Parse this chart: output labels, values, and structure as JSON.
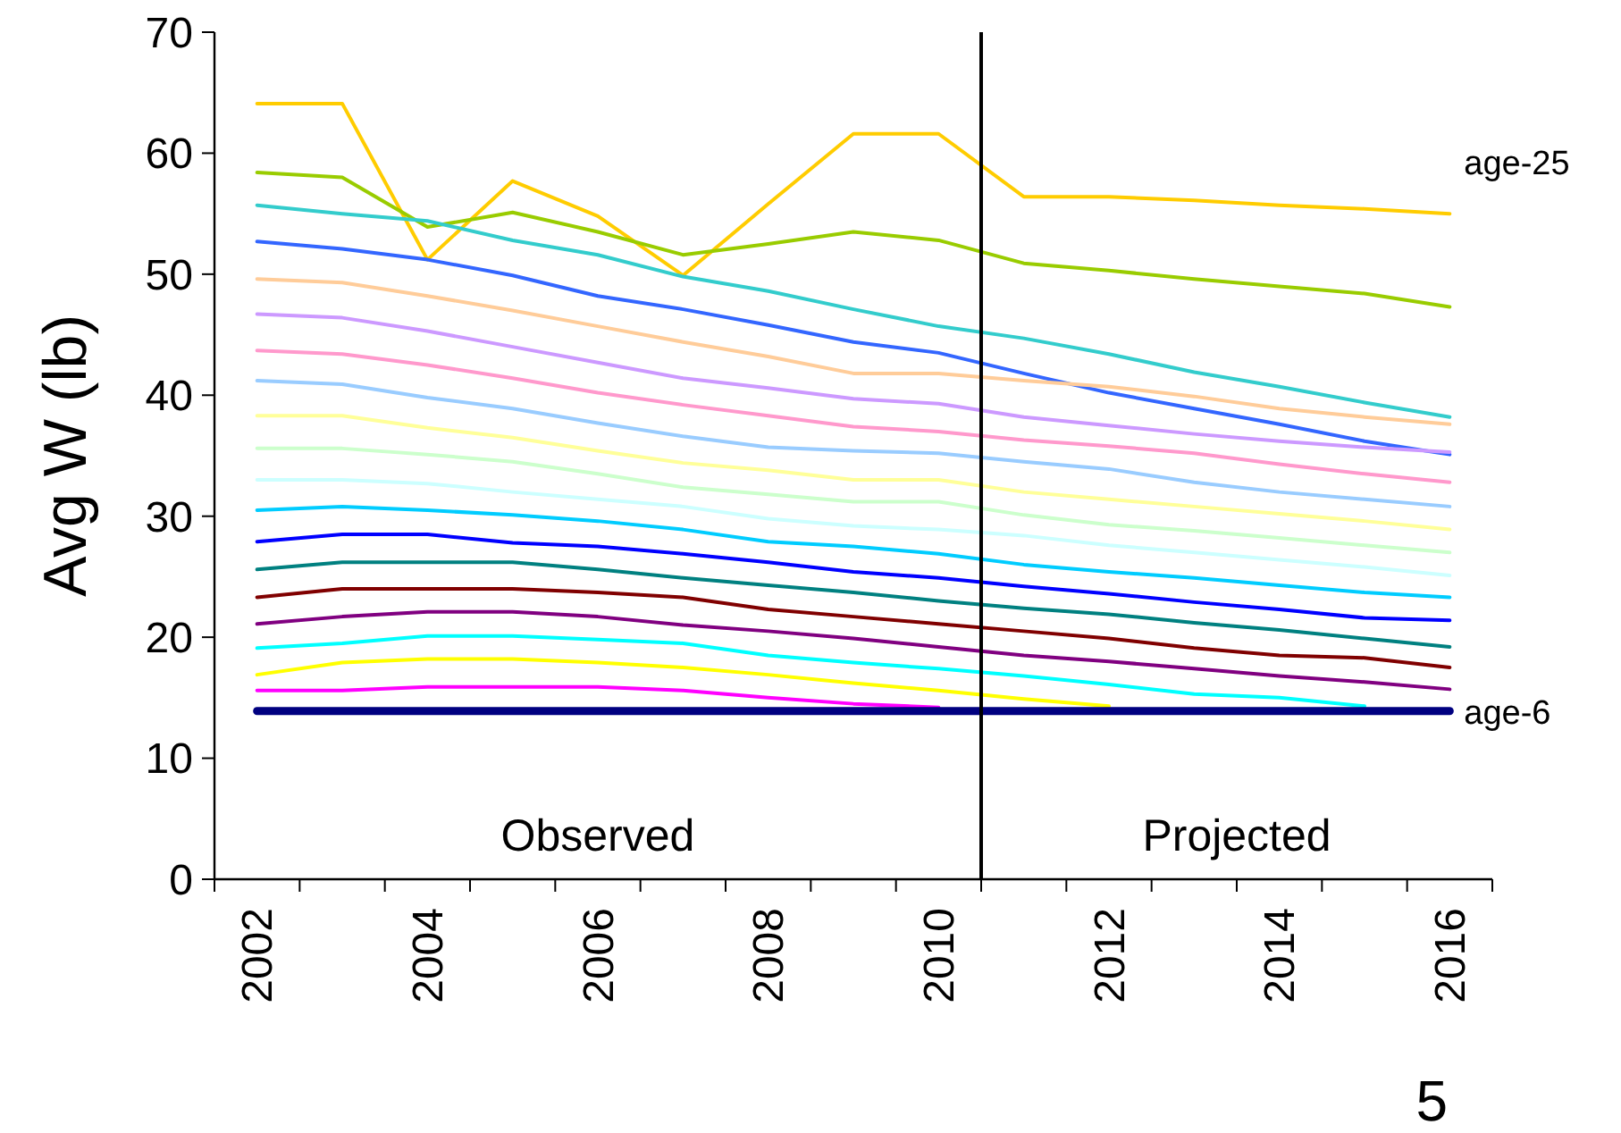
{
  "chart_data": {
    "type": "line",
    "ylabel": "Avg W (lb)",
    "x": [
      2002,
      2003,
      2004,
      2005,
      2006,
      2007,
      2008,
      2009,
      2010,
      2011,
      2012,
      2013,
      2014,
      2015,
      2016
    ],
    "xlim": [
      2001.5,
      2016.5
    ],
    "xticks": [
      {
        "value": 2001.5,
        "label": null
      },
      2002,
      {
        "value": 2002.5,
        "label": null
      },
      {
        "value": 2003.5,
        "label": null
      },
      2004,
      {
        "value": 2004.5,
        "label": null
      },
      {
        "value": 2005.5,
        "label": null
      },
      2006,
      {
        "value": 2006.5,
        "label": null
      },
      {
        "value": 2007.5,
        "label": null
      },
      2008,
      {
        "value": 2008.5,
        "label": null
      },
      {
        "value": 2009.5,
        "label": null
      },
      2010,
      {
        "value": 2010.5,
        "label": null
      },
      {
        "value": 2011.5,
        "label": null
      },
      2012,
      {
        "value": 2012.5,
        "label": null
      },
      {
        "value": 2013.5,
        "label": null
      },
      2014,
      {
        "value": 2014.5,
        "label": null
      },
      {
        "value": 2015.5,
        "label": null
      },
      2016,
      {
        "value": 2016.5,
        "label": null
      }
    ],
    "ylim": [
      0,
      70
    ],
    "yticks": [
      0,
      10,
      20,
      30,
      40,
      50,
      60,
      70
    ],
    "grid": false,
    "legend": false,
    "marker": "none",
    "line_style": "solid",
    "ref_lines": [
      {
        "axis": "x",
        "value": 2010.5,
        "color": "#000000"
      }
    ],
    "annotations": [
      "Observed",
      "Projected",
      "5"
    ],
    "series": [
      {
        "name": "age-25",
        "color": "#ffcc00",
        "values": [
          64.1,
          64.1,
          51.2,
          57.7,
          54.8,
          49.9,
          55.8,
          61.6,
          61.6,
          56.4,
          56.4,
          56.1,
          55.7,
          55.4,
          55.0
        ]
      },
      {
        "color": "#99cc00",
        "values": [
          58.4,
          58.0,
          53.9,
          55.1,
          53.5,
          51.6,
          52.5,
          53.5,
          52.8,
          50.9,
          50.3,
          49.6,
          49.0,
          48.4,
          47.3
        ]
      },
      {
        "color": "#33cccc",
        "values": [
          55.7,
          55.0,
          54.4,
          52.8,
          51.6,
          49.8,
          48.6,
          47.1,
          45.7,
          44.7,
          43.4,
          41.9,
          40.7,
          39.4,
          38.2
        ]
      },
      {
        "color": "#3366ff",
        "values": [
          52.7,
          52.1,
          51.2,
          49.9,
          48.2,
          47.1,
          45.8,
          44.4,
          43.5,
          41.8,
          40.2,
          38.9,
          37.6,
          36.2,
          35.1
        ]
      },
      {
        "color": "#ffcc99",
        "values": [
          49.6,
          49.3,
          48.2,
          47.0,
          45.7,
          44.4,
          43.2,
          41.8,
          41.8,
          41.2,
          40.7,
          39.9,
          38.9,
          38.2,
          37.6
        ]
      },
      {
        "color": "#cc99ff",
        "values": [
          46.7,
          46.4,
          45.3,
          44.0,
          42.7,
          41.4,
          40.6,
          39.7,
          39.3,
          38.2,
          37.5,
          36.8,
          36.2,
          35.7,
          35.3
        ]
      },
      {
        "color": "#ff99cc",
        "values": [
          43.7,
          43.4,
          42.5,
          41.4,
          40.2,
          39.2,
          38.3,
          37.4,
          37.0,
          36.3,
          35.8,
          35.2,
          34.3,
          33.5,
          32.8
        ]
      },
      {
        "color": "#99ccff",
        "values": [
          41.2,
          40.9,
          39.8,
          38.9,
          37.7,
          36.6,
          35.7,
          35.4,
          35.2,
          34.5,
          33.9,
          32.8,
          32.0,
          31.4,
          30.8
        ]
      },
      {
        "color": "#ffff99",
        "values": [
          38.3,
          38.3,
          37.3,
          36.5,
          35.4,
          34.4,
          33.8,
          33.0,
          33.0,
          32.0,
          31.4,
          30.8,
          30.2,
          29.6,
          28.9
        ]
      },
      {
        "color": "#ccffcc",
        "values": [
          35.6,
          35.6,
          35.1,
          34.5,
          33.5,
          32.4,
          31.8,
          31.2,
          31.2,
          30.1,
          29.3,
          28.8,
          28.2,
          27.6,
          27.0
        ]
      },
      {
        "color": "#ccffff",
        "values": [
          33.0,
          33.0,
          32.7,
          32.0,
          31.4,
          30.8,
          29.8,
          29.2,
          28.9,
          28.4,
          27.6,
          27.0,
          26.4,
          25.8,
          25.1
        ]
      },
      {
        "color": "#00ccff",
        "values": [
          30.5,
          30.8,
          30.5,
          30.1,
          29.6,
          28.9,
          27.9,
          27.5,
          26.9,
          26.0,
          25.4,
          24.9,
          24.3,
          23.7,
          23.3
        ]
      },
      {
        "color": "#0000ff",
        "values": [
          27.9,
          28.5,
          28.5,
          27.8,
          27.5,
          26.9,
          26.2,
          25.4,
          24.9,
          24.2,
          23.6,
          22.9,
          22.3,
          21.6,
          21.4
        ]
      },
      {
        "color": "#008080",
        "values": [
          25.6,
          26.2,
          26.2,
          26.2,
          25.6,
          24.9,
          24.3,
          23.7,
          23.0,
          22.4,
          21.9,
          21.2,
          20.6,
          19.9,
          19.2
        ]
      },
      {
        "color": "#800000",
        "values": [
          23.3,
          24.0,
          24.0,
          24.0,
          23.7,
          23.3,
          22.3,
          21.7,
          21.1,
          20.5,
          19.9,
          19.1,
          18.5,
          18.3,
          17.5
        ]
      },
      {
        "color": "#800080",
        "values": [
          21.1,
          21.7,
          22.1,
          22.1,
          21.7,
          21.0,
          20.5,
          19.9,
          19.2,
          18.5,
          18.0,
          17.4,
          16.8,
          16.3,
          15.7
        ]
      },
      {
        "color": "#00ffff",
        "values": [
          19.1,
          19.5,
          20.1,
          20.1,
          19.8,
          19.5,
          18.5,
          17.9,
          17.4,
          16.8,
          16.1,
          15.3,
          15.0,
          14.3,
          null
        ]
      },
      {
        "color": "#ffff00",
        "values": [
          16.9,
          17.9,
          18.2,
          18.2,
          17.9,
          17.5,
          16.9,
          16.2,
          15.6,
          14.9,
          14.3,
          null,
          null,
          null,
          null
        ]
      },
      {
        "color": "#ff00ff",
        "values": [
          15.6,
          15.6,
          15.9,
          15.9,
          15.9,
          15.6,
          15.0,
          14.5,
          14.2,
          null,
          null,
          null,
          null,
          null,
          null
        ]
      },
      {
        "name": "age-6",
        "color": "#000080",
        "values": [
          13.9,
          13.9,
          13.9,
          13.9,
          13.9,
          13.9,
          13.9,
          13.9,
          13.9,
          13.9,
          13.9,
          13.9,
          13.9,
          13.9,
          13.9
        ]
      }
    ]
  }
}
